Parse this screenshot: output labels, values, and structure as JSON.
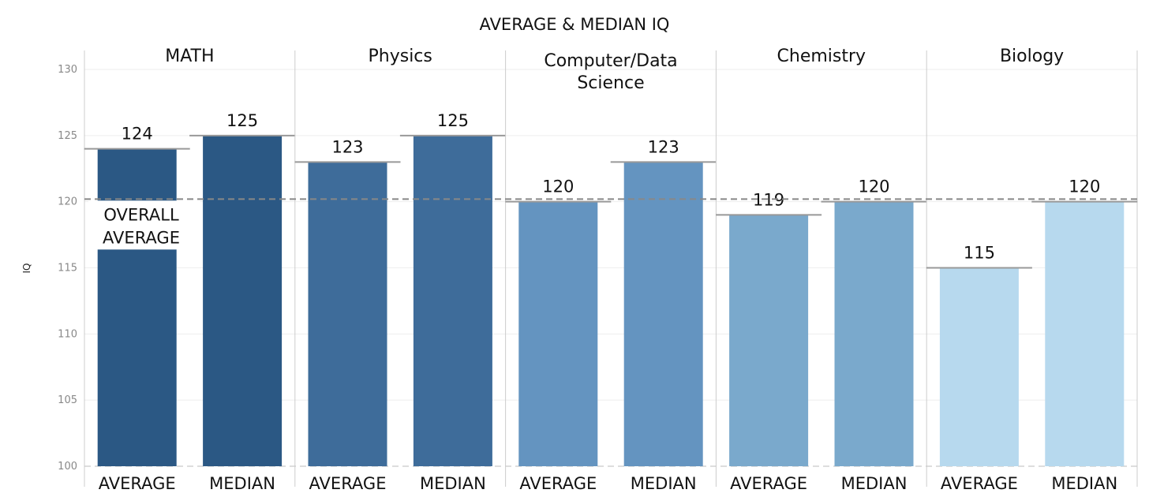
{
  "chart_data": {
    "type": "bar",
    "title": "AVERAGE & MEDIAN IQ",
    "ylabel": "IQ",
    "ylim": [
      100,
      130
    ],
    "yticks": [
      100,
      105,
      110,
      115,
      120,
      125,
      130
    ],
    "categories": [
      "AVERAGE",
      "MEDIAN"
    ],
    "reference_line": {
      "label": [
        "OVERALL",
        "AVERAGE"
      ],
      "value": 120.2
    },
    "panels": [
      {
        "name": "MATH",
        "label_lines": [
          "MATH"
        ],
        "values": [
          124,
          125
        ],
        "colors": [
          "#2b5884",
          "#2b5884"
        ]
      },
      {
        "name": "Physics",
        "label_lines": [
          "Physics"
        ],
        "values": [
          123,
          125
        ],
        "colors": [
          "#3e6c9a",
          "#3e6c9a"
        ]
      },
      {
        "name": "Computer/Data Science",
        "label_lines": [
          "Computer/Data",
          "Science"
        ],
        "values": [
          120,
          123
        ],
        "colors": [
          "#6494c0",
          "#6494c0"
        ]
      },
      {
        "name": "Chemistry",
        "label_lines": [
          "Chemistry"
        ],
        "values": [
          119,
          120
        ],
        "colors": [
          "#7aa9cc",
          "#7aa9cc"
        ]
      },
      {
        "name": "Biology",
        "label_lines": [
          "Biology"
        ],
        "values": [
          115,
          120
        ],
        "colors": [
          "#b7d9ee",
          "#b7d9ee"
        ]
      }
    ]
  }
}
